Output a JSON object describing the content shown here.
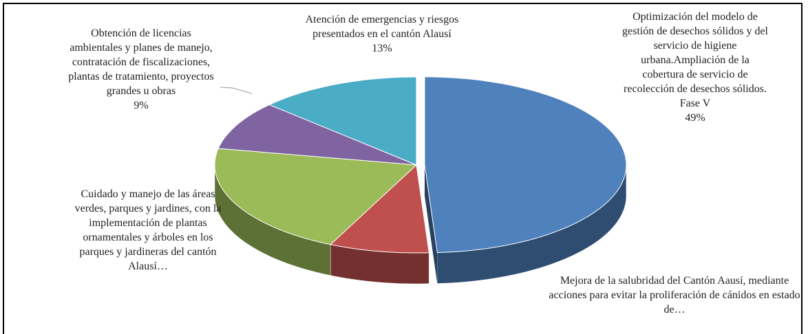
{
  "chart_data": {
    "type": "pie3d",
    "categories": [
      "Optimización del modelo de gestión de desechos sólidos y del servicio de higiene urbana.Ampliación de la cobertura de servicio de recolección de desechos sólidos. Fase V",
      "Mejora de la salubridad del Cantón Aausí, mediante acciones para evitar la proliferación de cánidos en estado de…",
      "Cuidado y manejo de las áreas verdes, parques y jardines, con la implementación de plantas ornamentales y árboles en los parques y jardineras del cantón Alausí…",
      "Obtención de licencias ambientales y planes de manejo, contratación de fiscalizaciones, plantas de tratamiento, proyectos grandes u obras",
      "Atención de emergencias y riesgos presentados en el cantón Alausí"
    ],
    "values": [
      49,
      8,
      21,
      9,
      13
    ],
    "value_labels": [
      "49%",
      null,
      null,
      "9%",
      "13%"
    ],
    "colors": [
      "#4f81bd",
      "#c0504d",
      "#9bbb59",
      "#8064a2",
      "#4bacc6"
    ]
  }
}
